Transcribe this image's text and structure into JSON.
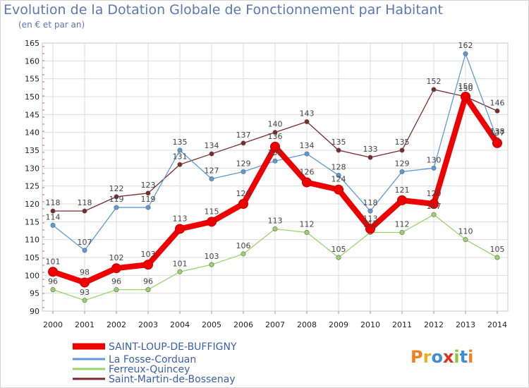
{
  "chart_data": {
    "type": "line",
    "title": "Evolution de la Dotation Globale de Fonctionnement par Habitant",
    "subtitle": "(en € et par an)",
    "xlabel": "",
    "ylabel": "",
    "ylim": [
      90,
      165
    ],
    "yticks": [
      90,
      95,
      100,
      105,
      110,
      115,
      120,
      125,
      130,
      135,
      140,
      145,
      150,
      155,
      160,
      165
    ],
    "x": [
      "2000",
      "2001",
      "2002",
      "2003",
      "2004",
      "2005",
      "2006",
      "2007",
      "2008",
      "2009",
      "2010",
      "2011",
      "2012",
      "2013",
      "2014"
    ],
    "grid": true,
    "legend_position": "bottom-left",
    "series": [
      {
        "name": "Saint-Martin-de-Bossenay",
        "color": "#7a2a2a",
        "values": [
          118,
          118,
          122,
          123,
          131,
          134,
          137,
          140,
          143,
          135,
          133,
          135,
          152,
          150,
          146
        ]
      },
      {
        "name": "La Fosse-Corduan",
        "color": "#5b9bd5",
        "values": [
          114,
          107,
          119,
          119,
          135,
          127,
          129,
          132,
          134,
          128,
          118,
          129,
          130,
          162,
          138
        ]
      },
      {
        "name": "Ferreux-Quincey",
        "color": "#99d36b",
        "values": [
          96,
          93,
          96,
          96,
          101,
          103,
          106,
          113,
          112,
          105,
          112,
          112,
          117,
          110,
          105
        ]
      },
      {
        "name": "SAINT-LOUP-DE-BUFFIGNY",
        "color": "#ee0000",
        "values": [
          101,
          98,
          102,
          103,
          113,
          115,
          120,
          136,
          126,
          124,
          113,
          121,
          120,
          150,
          137
        ]
      }
    ],
    "legend": [
      {
        "name": "SAINT-LOUP-DE-BUFFIGNY",
        "color": "#ee0000"
      },
      {
        "name": "La Fosse-Corduan",
        "color": "#5b9bd5"
      },
      {
        "name": "Ferreux-Quincey",
        "color": "#99d36b"
      },
      {
        "name": "Saint-Martin-de-Bossenay",
        "color": "#7a2a2a"
      }
    ]
  },
  "logo": {
    "text": "Proxiti",
    "letter_colors": [
      "#f08020",
      "#e8b020",
      "#3a8fd8",
      "#e03020",
      "#8cc43c",
      "#3a8fd8",
      "#f08020"
    ]
  }
}
